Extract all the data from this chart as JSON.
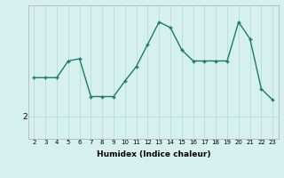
{
  "x": [
    2,
    3,
    4,
    5,
    6,
    7,
    8,
    9,
    10,
    11,
    12,
    13,
    14,
    15,
    16,
    17,
    18,
    19,
    20,
    21,
    22,
    23
  ],
  "y": [
    5.5,
    5.5,
    5.5,
    7.0,
    7.2,
    3.8,
    3.8,
    3.8,
    5.2,
    6.5,
    8.5,
    10.5,
    10.0,
    8.0,
    7.0,
    7.0,
    7.0,
    7.0,
    10.5,
    9.0,
    4.5,
    3.5
  ],
  "line_color": "#1a7a6e",
  "marker": "+",
  "bg_color": "#d6f0ee",
  "grid_color": "#b8ddd8",
  "xlabel": "Humidex (Indice chaleur)",
  "ytick_label": "2",
  "ytick_value": 2,
  "xlim": [
    1.5,
    23.5
  ],
  "ylim": [
    0,
    12
  ],
  "xtick_fontsize": 5.0,
  "ytick_fontsize": 6.5,
  "xlabel_fontsize": 6.5
}
